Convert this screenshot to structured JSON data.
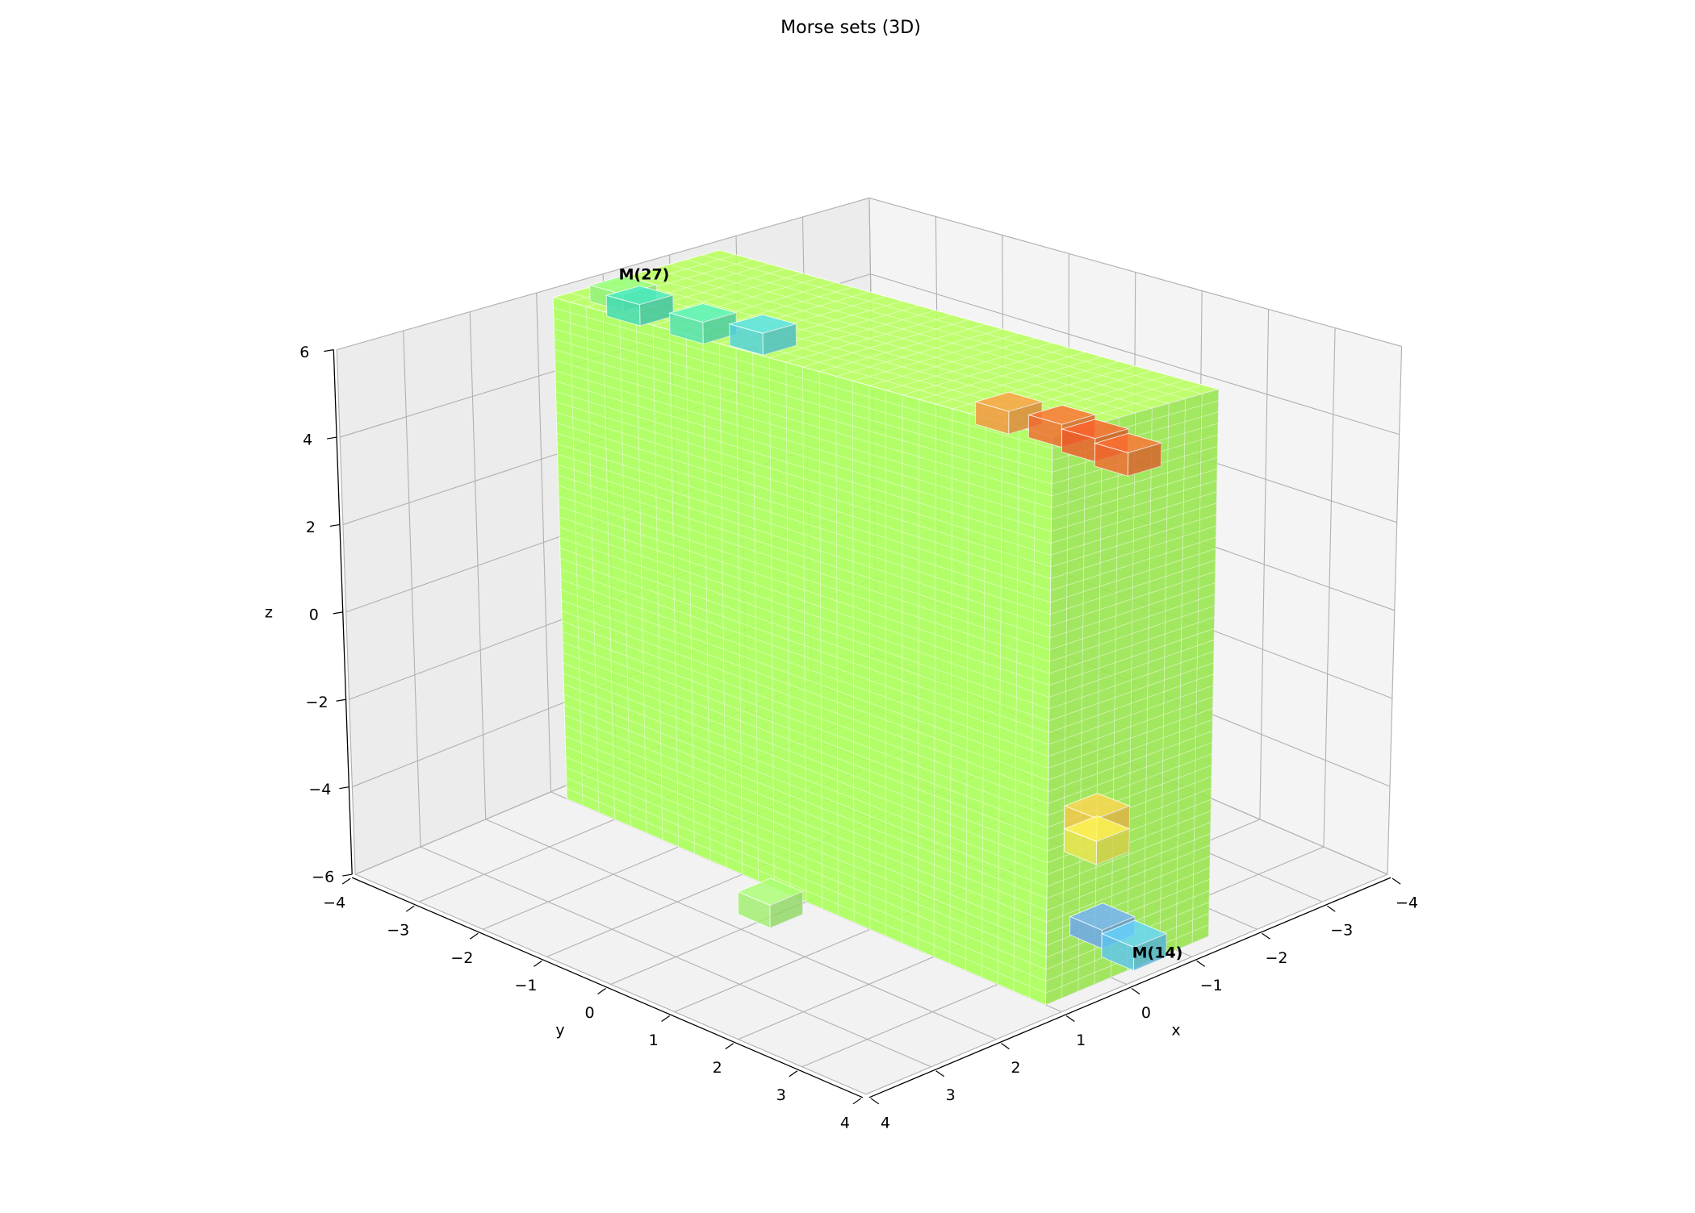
{
  "chart_data": {
    "type": "voxel3d",
    "title": "Morse sets (3D)",
    "x_label": "x",
    "y_label": "y",
    "z_label": "z",
    "xlim": [
      -4,
      4
    ],
    "ylim": [
      -4,
      4
    ],
    "zlim": [
      -6,
      6
    ],
    "xticks": [
      {
        "value": -4,
        "label": "−4"
      },
      {
        "value": -3,
        "label": "−3"
      },
      {
        "value": -2,
        "label": "−2"
      },
      {
        "value": -1,
        "label": "−1"
      },
      0,
      1,
      2,
      3,
      4
    ],
    "yticks": [
      {
        "value": -4,
        "label": "−4"
      },
      {
        "value": -3,
        "label": "−3"
      },
      {
        "value": -2,
        "label": "−2"
      },
      {
        "value": -1,
        "label": "−1"
      },
      0,
      1,
      2,
      3,
      4
    ],
    "zticks": [
      {
        "value": -6,
        "label": "−6"
      },
      {
        "value": -4,
        "label": "−4"
      },
      {
        "value": -2,
        "label": "−2"
      },
      0,
      2,
      4,
      6
    ],
    "grid": true,
    "sets": [
      {
        "x": [
          -1.5,
          1
        ],
        "y": [
          -3.75,
          3.75
        ],
        "z": [
          -6,
          6
        ],
        "color": "#adff5c"
      },
      {
        "x": [
          -0.75,
          -0.25
        ],
        "y": [
          1.35,
          1.85
        ],
        "z": [
          4.75,
          5.25
        ],
        "color": "#f6913e"
      },
      {
        "x": [
          -0.75,
          -0.25
        ],
        "y": [
          2.15,
          2.65
        ],
        "z": [
          4.8,
          5.3
        ],
        "color": "#f2672e"
      },
      {
        "x": [
          -0.75,
          -0.25
        ],
        "y": [
          2.65,
          3.15
        ],
        "z": [
          4.7,
          5.2
        ],
        "color": "#f05a28"
      },
      {
        "x": [
          -0.75,
          -0.25
        ],
        "y": [
          3.15,
          3.65
        ],
        "z": [
          4.6,
          5.1
        ],
        "color": "#f2672e"
      },
      {
        "x": [
          -0.75,
          -0.25
        ],
        "y": [
          2.75,
          3.25
        ],
        "z": [
          -3.5,
          -3
        ],
        "color": "#f7c64a"
      },
      {
        "x": [
          -0.75,
          -0.25
        ],
        "y": [
          2.75,
          3.25
        ],
        "z": [
          -4,
          -3.5
        ],
        "color": "#eee44f"
      },
      {
        "x": [
          -0.8,
          -0.3
        ],
        "y": [
          3.3,
          3.8
        ],
        "z": [
          -6,
          -5.5
        ],
        "color": "#5cc4f2"
      },
      {
        "x": [
          -0.95,
          -0.45
        ],
        "y": [
          2.65,
          3.15
        ],
        "z": [
          -6,
          -5.6
        ],
        "color": "#6aa3f2"
      },
      {
        "x": [
          1.25,
          1.75
        ],
        "y": [
          -0.3,
          0.2
        ],
        "z": [
          -6,
          -5.5
        ],
        "color": "#9ef06a"
      },
      {
        "x": [
          0.05,
          0.55
        ],
        "y": [
          -2.45,
          -1.95
        ],
        "z": [
          5.5,
          6
        ],
        "color": "#4fe0b4"
      },
      {
        "x": [
          -0.1,
          0.4
        ],
        "y": [
          -1.7,
          -1.2
        ],
        "z": [
          5.5,
          6
        ],
        "color": "#4fd0e0"
      },
      {
        "x": [
          0.05,
          0.55
        ],
        "y": [
          -3.4,
          -2.9
        ],
        "z": [
          5.5,
          6
        ],
        "color": "#3fd8b8"
      },
      {
        "x": [
          -0.1,
          0.4
        ],
        "y": [
          -3.8,
          -3.3
        ],
        "z": [
          5.6,
          6
        ],
        "color": "#8ff07a"
      }
    ],
    "annotations": [
      "M(27)",
      "M(14)"
    ]
  }
}
